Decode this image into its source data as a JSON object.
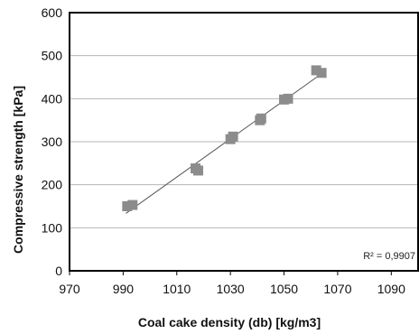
{
  "chart_data": {
    "type": "scatter",
    "title": "",
    "xlabel": "Coal cake density (db) [kg/m3]",
    "ylabel": "Compressive strength [kPa]",
    "xlim": [
      970,
      1100
    ],
    "ylim": [
      0,
      600
    ],
    "x_ticks": [
      970,
      990,
      1010,
      1030,
      1050,
      1070,
      1090
    ],
    "y_ticks": [
      0,
      100,
      200,
      300,
      400,
      500,
      600
    ],
    "grid": "horizontal",
    "marker": "square",
    "colors": {
      "marker": "#8c8c8c",
      "trendline": "#555555",
      "grid": "#b5b5b5",
      "frame": "#000000"
    },
    "series": [
      {
        "x": [
          991.5,
          993.5,
          1017,
          1018,
          1030,
          1031,
          1041,
          1041.5,
          1050,
          1051.5,
          1062,
          1064
        ],
        "y": [
          150,
          153,
          238,
          233,
          306,
          312,
          350,
          354,
          398,
          400,
          466,
          460
        ]
      }
    ],
    "trendline": {
      "x": [
        991,
        1065
      ]
    },
    "annotation": "R² = 0,9907"
  }
}
